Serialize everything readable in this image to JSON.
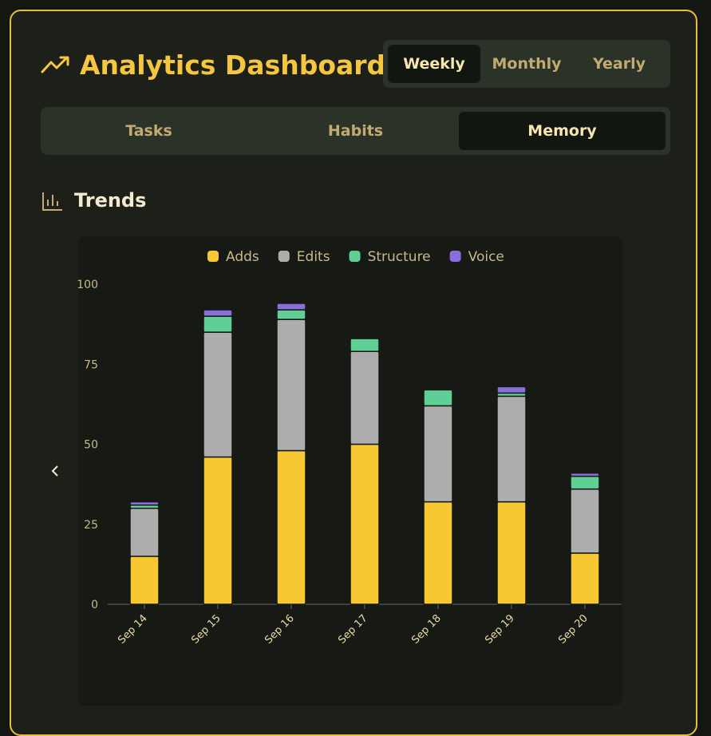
{
  "header": {
    "title": "Analytics Dashboard",
    "periods": [
      "Weekly",
      "Monthly",
      "Yearly"
    ]
  },
  "tabs": [
    "Tasks",
    "Habits",
    "Memory"
  ],
  "section": {
    "title": "Trends"
  },
  "chart_data": {
    "type": "bar",
    "stacked": true,
    "categories": [
      "Sep 14",
      "Sep 15",
      "Sep 16",
      "Sep 17",
      "Sep 18",
      "Sep 19",
      "Sep 20"
    ],
    "series": [
      {
        "name": "Adds",
        "color": "#f7c832",
        "values": [
          15,
          46,
          48,
          50,
          32,
          32,
          16
        ]
      },
      {
        "name": "Edits",
        "color": "#adadad",
        "values": [
          15,
          39,
          41,
          29,
          30,
          33,
          20
        ]
      },
      {
        "name": "Structure",
        "color": "#5fcf95",
        "values": [
          1,
          5,
          3,
          4,
          5,
          1,
          4
        ]
      },
      {
        "name": "Voice",
        "color": "#8a6fdc",
        "values": [
          1,
          2,
          2,
          0,
          0,
          2,
          1
        ]
      }
    ],
    "ylim": [
      0,
      100
    ],
    "yticks": [
      0,
      25,
      50,
      75,
      100
    ],
    "legend": "top"
  }
}
